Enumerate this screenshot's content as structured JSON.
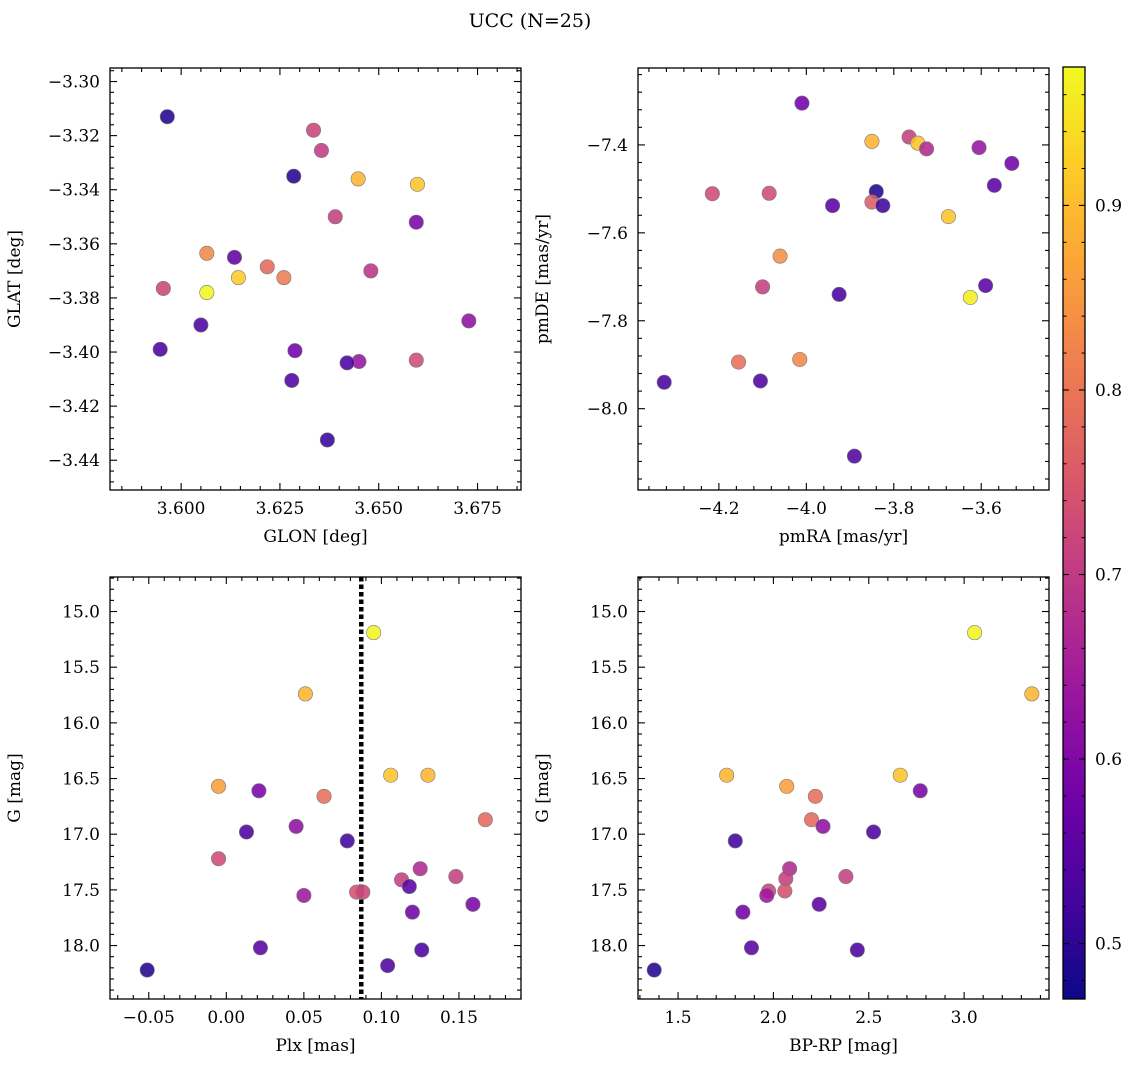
{
  "figure": {
    "suptitle": "UCC (N=25)",
    "colorbar": {
      "colormap": "plasma",
      "vmin": 0.47,
      "vmax": 0.975,
      "ticks": [
        0.5,
        0.6,
        0.7,
        0.8,
        0.9
      ],
      "tick_labels": [
        "0.5",
        "0.6",
        "0.7",
        "0.8",
        "0.9"
      ]
    }
  },
  "chart_data": [
    {
      "type": "scatter",
      "panel": "top-left",
      "xlabel": "GLON [deg]",
      "ylabel": "GLAT [deg]",
      "xlim": [
        3.582,
        3.686
      ],
      "ylim": [
        -3.451,
        -3.295
      ],
      "y_inverted": false,
      "xticks": [
        3.6,
        3.625,
        3.65,
        3.675
      ],
      "xtick_labels": [
        "3.600",
        "3.625",
        "3.650",
        "3.675"
      ],
      "yticks": [
        -3.44,
        -3.42,
        -3.4,
        -3.38,
        -3.36,
        -3.34,
        -3.32,
        -3.3
      ],
      "ytick_labels": [
        "−3.44",
        "−3.42",
        "−3.40",
        "−3.38",
        "−3.36",
        "−3.34",
        "−3.32",
        "−3.30"
      ],
      "points": [
        {
          "x": 3.5965,
          "y": -3.313,
          "c": 0.49
        },
        {
          "x": 3.6335,
          "y": -3.318,
          "c": 0.72
        },
        {
          "x": 3.6355,
          "y": -3.3255,
          "c": 0.7
        },
        {
          "x": 3.6285,
          "y": -3.335,
          "c": 0.49
        },
        {
          "x": 3.6448,
          "y": -3.336,
          "c": 0.89
        },
        {
          "x": 3.6598,
          "y": -3.338,
          "c": 0.91
        },
        {
          "x": 3.639,
          "y": -3.35,
          "c": 0.71
        },
        {
          "x": 3.6595,
          "y": -3.352,
          "c": 0.59
        },
        {
          "x": 3.6065,
          "y": -3.3635,
          "c": 0.83
        },
        {
          "x": 3.6135,
          "y": -3.365,
          "c": 0.56
        },
        {
          "x": 3.6218,
          "y": -3.3685,
          "c": 0.78
        },
        {
          "x": 3.648,
          "y": -3.37,
          "c": 0.69
        },
        {
          "x": 3.6145,
          "y": -3.3725,
          "c": 0.92
        },
        {
          "x": 3.626,
          "y": -3.3725,
          "c": 0.81
        },
        {
          "x": 3.5955,
          "y": -3.3765,
          "c": 0.72
        },
        {
          "x": 3.6065,
          "y": -3.378,
          "c": 0.97
        },
        {
          "x": 3.6728,
          "y": -3.3885,
          "c": 0.62
        },
        {
          "x": 3.605,
          "y": -3.39,
          "c": 0.53
        },
        {
          "x": 3.5947,
          "y": -3.399,
          "c": 0.53
        },
        {
          "x": 3.6288,
          "y": -3.3995,
          "c": 0.58
        },
        {
          "x": 3.6595,
          "y": -3.403,
          "c": 0.73
        },
        {
          "x": 3.645,
          "y": -3.4035,
          "c": 0.63
        },
        {
          "x": 3.642,
          "y": -3.404,
          "c": 0.53
        },
        {
          "x": 3.628,
          "y": -3.4105,
          "c": 0.54
        },
        {
          "x": 3.637,
          "y": -3.4325,
          "c": 0.51
        }
      ]
    },
    {
      "type": "scatter",
      "panel": "top-right",
      "xlabel": "pmRA [mas/yr]",
      "ylabel": "pmDE [mas/yr]",
      "xlim": [
        -4.385,
        -3.445
      ],
      "ylim": [
        -8.185,
        -7.225
      ],
      "y_inverted": false,
      "xticks": [
        -4.2,
        -4.0,
        -3.8,
        -3.6
      ],
      "xtick_labels": [
        "−4.2",
        "−4.0",
        "−3.8",
        "−3.6"
      ],
      "yticks": [
        -8.0,
        -7.8,
        -7.6,
        -7.4
      ],
      "ytick_labels": [
        "−8.0",
        "−7.8",
        "−7.6",
        "−7.4"
      ],
      "points": [
        {
          "x": -4.01,
          "y": -7.305,
          "c": 0.58
        },
        {
          "x": -3.765,
          "y": -7.382,
          "c": 0.71
        },
        {
          "x": -3.85,
          "y": -7.392,
          "c": 0.89
        },
        {
          "x": -3.745,
          "y": -7.396,
          "c": 0.91
        },
        {
          "x": -3.605,
          "y": -7.406,
          "c": 0.63
        },
        {
          "x": -3.725,
          "y": -7.409,
          "c": 0.67
        },
        {
          "x": -3.53,
          "y": -7.442,
          "c": 0.58
        },
        {
          "x": -3.57,
          "y": -7.492,
          "c": 0.55
        },
        {
          "x": -3.84,
          "y": -7.506,
          "c": 0.49
        },
        {
          "x": -4.085,
          "y": -7.51,
          "c": 0.73
        },
        {
          "x": -4.215,
          "y": -7.511,
          "c": 0.73
        },
        {
          "x": -3.85,
          "y": -7.53,
          "c": 0.76
        },
        {
          "x": -3.94,
          "y": -7.538,
          "c": 0.55
        },
        {
          "x": -3.825,
          "y": -7.538,
          "c": 0.52
        },
        {
          "x": -3.675,
          "y": -7.563,
          "c": 0.91
        },
        {
          "x": -4.06,
          "y": -7.653,
          "c": 0.84
        },
        {
          "x": -3.59,
          "y": -7.72,
          "c": 0.55
        },
        {
          "x": -4.1,
          "y": -7.723,
          "c": 0.71
        },
        {
          "x": -3.925,
          "y": -7.74,
          "c": 0.53
        },
        {
          "x": -3.625,
          "y": -7.747,
          "c": 0.96
        },
        {
          "x": -4.015,
          "y": -7.888,
          "c": 0.83
        },
        {
          "x": -4.155,
          "y": -7.894,
          "c": 0.79
        },
        {
          "x": -4.105,
          "y": -7.937,
          "c": 0.54
        },
        {
          "x": -4.325,
          "y": -7.94,
          "c": 0.53
        },
        {
          "x": -3.89,
          "y": -8.108,
          "c": 0.54
        }
      ]
    },
    {
      "type": "scatter",
      "panel": "bottom-left",
      "xlabel": "Plx [mas]",
      "ylabel": "G [mag]",
      "xlim": [
        -0.075,
        0.19
      ],
      "ylim": [
        18.48,
        14.69
      ],
      "y_inverted": true,
      "vertical_line": {
        "x": 0.087,
        "style": "dotted"
      },
      "xticks": [
        -0.05,
        0.0,
        0.05,
        0.1,
        0.15
      ],
      "xtick_labels": [
        "−0.05",
        "0.00",
        "0.05",
        "0.10",
        "0.15"
      ],
      "yticks": [
        15.0,
        15.5,
        16.0,
        16.5,
        17.0,
        17.5,
        18.0
      ],
      "ytick_labels": [
        "15.0",
        "15.5",
        "16.0",
        "16.5",
        "17.0",
        "17.5",
        "18.0"
      ],
      "points": [
        {
          "x": 0.095,
          "y": 15.19,
          "c": 0.97
        },
        {
          "x": 0.051,
          "y": 15.74,
          "c": 0.89
        },
        {
          "x": 0.106,
          "y": 16.47,
          "c": 0.91
        },
        {
          "x": 0.13,
          "y": 16.47,
          "c": 0.89
        },
        {
          "x": -0.005,
          "y": 16.57,
          "c": 0.86
        },
        {
          "x": 0.021,
          "y": 16.61,
          "c": 0.59
        },
        {
          "x": 0.063,
          "y": 16.66,
          "c": 0.79
        },
        {
          "x": 0.167,
          "y": 16.87,
          "c": 0.78
        },
        {
          "x": 0.045,
          "y": 16.93,
          "c": 0.62
        },
        {
          "x": 0.013,
          "y": 16.98,
          "c": 0.53
        },
        {
          "x": 0.078,
          "y": 17.06,
          "c": 0.52
        },
        {
          "x": -0.005,
          "y": 17.22,
          "c": 0.73
        },
        {
          "x": 0.125,
          "y": 17.31,
          "c": 0.67
        },
        {
          "x": 0.148,
          "y": 17.38,
          "c": 0.71
        },
        {
          "x": 0.113,
          "y": 17.41,
          "c": 0.71
        },
        {
          "x": 0.118,
          "y": 17.47,
          "c": 0.55
        },
        {
          "x": 0.084,
          "y": 17.52,
          "c": 0.74
        },
        {
          "x": 0.088,
          "y": 17.52,
          "c": 0.72
        },
        {
          "x": 0.05,
          "y": 17.55,
          "c": 0.64
        },
        {
          "x": 0.159,
          "y": 17.63,
          "c": 0.59
        },
        {
          "x": 0.12,
          "y": 17.7,
          "c": 0.58
        },
        {
          "x": 0.022,
          "y": 18.02,
          "c": 0.55
        },
        {
          "x": 0.126,
          "y": 18.04,
          "c": 0.53
        },
        {
          "x": 0.104,
          "y": 18.18,
          "c": 0.54
        },
        {
          "x": -0.051,
          "y": 18.22,
          "c": 0.49
        }
      ]
    },
    {
      "type": "scatter",
      "panel": "bottom-right",
      "xlabel": "BP-RP [mag]",
      "ylabel": "G [mag]",
      "xlim": [
        1.29,
        3.445
      ],
      "ylim": [
        18.48,
        14.69
      ],
      "y_inverted": true,
      "xticks": [
        1.5,
        2.0,
        2.5,
        3.0
      ],
      "xtick_labels": [
        "1.5",
        "2.0",
        "2.5",
        "3.0"
      ],
      "yticks": [
        15.0,
        15.5,
        16.0,
        16.5,
        17.0,
        17.5,
        18.0
      ],
      "ytick_labels": [
        "15.0",
        "15.5",
        "16.0",
        "16.5",
        "17.0",
        "17.5",
        "18.0"
      ],
      "points": [
        {
          "x": 3.055,
          "y": 15.19,
          "c": 0.97
        },
        {
          "x": 3.355,
          "y": 15.74,
          "c": 0.89
        },
        {
          "x": 1.755,
          "y": 16.47,
          "c": 0.89
        },
        {
          "x": 2.665,
          "y": 16.47,
          "c": 0.91
        },
        {
          "x": 2.07,
          "y": 16.57,
          "c": 0.86
        },
        {
          "x": 2.77,
          "y": 16.61,
          "c": 0.59
        },
        {
          "x": 2.22,
          "y": 16.66,
          "c": 0.79
        },
        {
          "x": 2.2,
          "y": 16.87,
          "c": 0.78
        },
        {
          "x": 2.26,
          "y": 16.93,
          "c": 0.62
        },
        {
          "x": 2.525,
          "y": 16.98,
          "c": 0.53
        },
        {
          "x": 1.8,
          "y": 17.06,
          "c": 0.52
        },
        {
          "x": 2.085,
          "y": 17.31,
          "c": 0.67
        },
        {
          "x": 2.38,
          "y": 17.38,
          "c": 0.71
        },
        {
          "x": 2.065,
          "y": 17.4,
          "c": 0.71
        },
        {
          "x": 1.975,
          "y": 17.51,
          "c": 0.72
        },
        {
          "x": 2.06,
          "y": 17.51,
          "c": 0.74
        },
        {
          "x": 1.965,
          "y": 17.55,
          "c": 0.64
        },
        {
          "x": 2.24,
          "y": 17.63,
          "c": 0.55
        },
        {
          "x": 1.84,
          "y": 17.7,
          "c": 0.58
        },
        {
          "x": 1.885,
          "y": 18.02,
          "c": 0.55
        },
        {
          "x": 2.44,
          "y": 18.04,
          "c": 0.53
        },
        {
          "x": 1.375,
          "y": 18.22,
          "c": 0.49
        }
      ]
    }
  ]
}
